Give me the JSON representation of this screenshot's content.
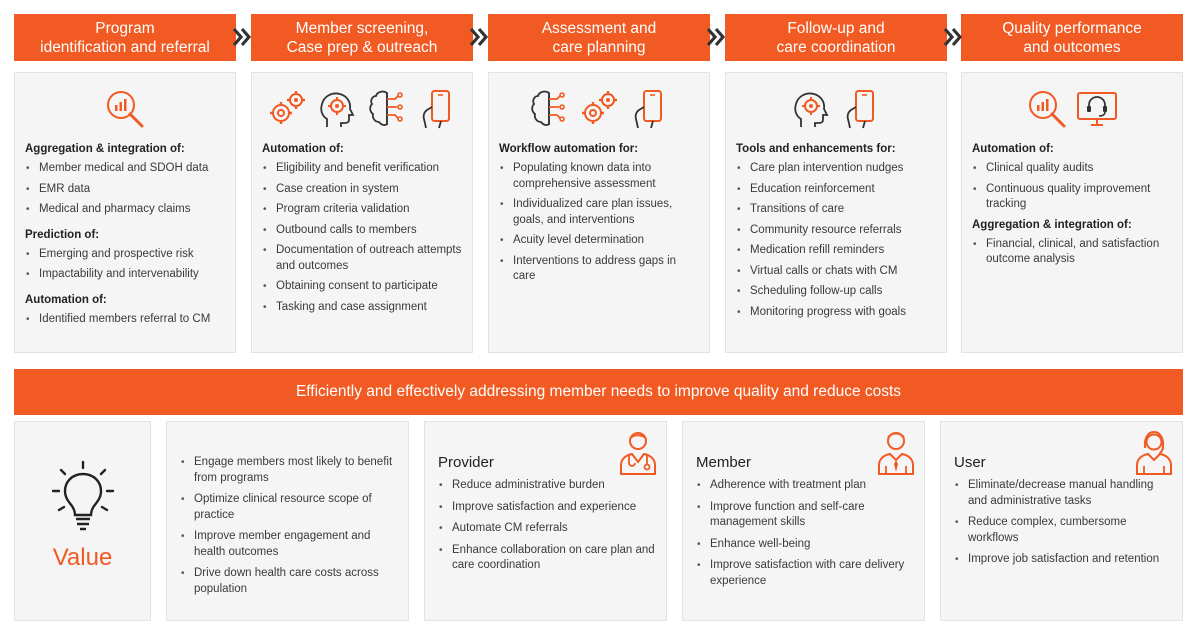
{
  "colors": {
    "accent": "#f15a22",
    "panel_bg": "#f5f5f5",
    "chevron": "#333333"
  },
  "stages": [
    {
      "title": "Program\nidentification and referral",
      "icons": [
        "analytics-magnifier-icon"
      ],
      "groups": [
        {
          "heading": "Aggregation & integration of:",
          "items": [
            "Member medical and SDOH data",
            "EMR data",
            "Medical and pharmacy claims"
          ]
        },
        {
          "heading": "Prediction of:",
          "items": [
            "Emerging and prospective risk",
            "Impactability and intervenability"
          ]
        },
        {
          "heading": "Automation of:",
          "items": [
            "Identified members referral to CM"
          ]
        }
      ]
    },
    {
      "title": "Member screening,\nCase prep & outreach",
      "icons": [
        "gears-icon",
        "head-gears-icon",
        "ai-brain-icon",
        "hand-phone-icon"
      ],
      "groups": [
        {
          "heading": "Automation of:",
          "items": [
            "Eligibility and benefit verification",
            "Case creation in system",
            "Program criteria validation",
            "Outbound calls to members",
            "Documentation of outreach attempts and outcomes",
            "Obtaining consent to participate",
            "Tasking and case assignment"
          ]
        }
      ]
    },
    {
      "title": "Assessment and\ncare planning",
      "icons": [
        "ai-brain-icon",
        "gears-icon",
        "hand-phone-icon"
      ],
      "groups": [
        {
          "heading": "Workflow automation for:",
          "items": [
            "Populating known data into comprehensive assessment",
            "Individualized care plan issues, goals, and interventions",
            "Acuity level determination",
            "Interventions to address gaps in care"
          ]
        }
      ]
    },
    {
      "title": "Follow-up and\ncare coordination",
      "icons": [
        "head-gears-icon",
        "hand-phone-icon"
      ],
      "groups": [
        {
          "heading": "Tools and enhancements for:",
          "items": [
            "Care plan intervention nudges",
            "Education reinforcement",
            "Transitions of care",
            "Community resource referrals",
            "Medication refill reminders",
            "Virtual calls or chats with CM",
            "Scheduling follow-up calls",
            "Monitoring progress with goals"
          ]
        }
      ]
    },
    {
      "title": "Quality performance\nand outcomes",
      "icons": [
        "analytics-magnifier-icon",
        "headset-monitor-icon"
      ],
      "groups": [
        {
          "heading": "Automation of:",
          "items": [
            "Clinical quality audits",
            "Continuous quality improvement tracking"
          ]
        },
        {
          "heading": "Aggregation & integration of:",
          "items": [
            "Financial, clinical, and satisfaction outcome analysis"
          ]
        }
      ]
    }
  ],
  "banner": "Efficiently and effectively addressing member needs to improve quality and reduce costs",
  "value": {
    "label": "Value",
    "icon": "lightbulb-icon",
    "items": [
      "Engage members most likely to benefit from programs",
      "Optimize clinical resource scope of practice",
      "Improve member engagement and health outcomes",
      "Drive down health care costs across population"
    ]
  },
  "audiences": [
    {
      "title": "Provider",
      "icon": "doctor-icon",
      "items": [
        "Reduce administrative burden",
        "Improve satisfaction and experience",
        "Automate CM referrals",
        "Enhance collaboration on care plan and care coordination"
      ]
    },
    {
      "title": "Member",
      "icon": "man-icon",
      "items": [
        "Adherence with treatment plan",
        "Improve function and self-care management skills",
        "Enhance well-being",
        "Improve satisfaction with care delivery experience"
      ]
    },
    {
      "title": "User",
      "icon": "woman-icon",
      "items": [
        "Eliminate/decrease manual handling and administrative tasks",
        "Reduce complex, cumbersome workflows",
        "Improve job satisfaction and retention"
      ]
    }
  ]
}
